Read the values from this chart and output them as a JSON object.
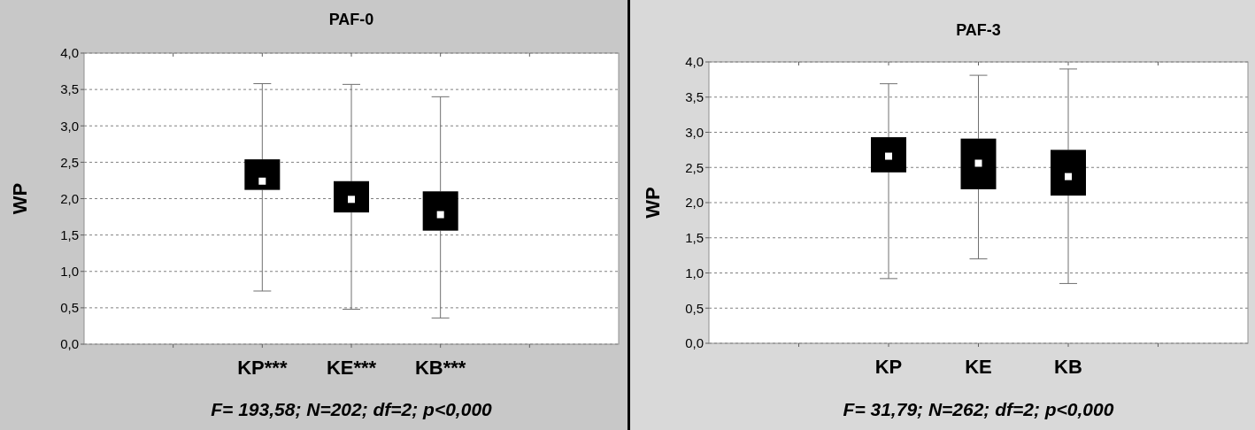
{
  "chart_data": [
    {
      "type": "box",
      "title": "PAF-0",
      "ylabel": "WP",
      "categories": [
        null,
        "KP***",
        "KE***",
        "KB***",
        null
      ],
      "boxes": [
        null,
        {
          "low": 0.73,
          "q1": 2.12,
          "median": 2.24,
          "q3": 2.54,
          "high": 3.58
        },
        {
          "low": 0.48,
          "q1": 1.81,
          "median": 1.99,
          "q3": 2.24,
          "high": 3.57
        },
        {
          "low": 0.36,
          "q1": 1.56,
          "median": 1.78,
          "q3": 2.1,
          "high": 3.4
        },
        null
      ],
      "color": "#000000",
      "ylim": [
        0,
        4
      ],
      "yticks": [
        {
          "value": 0,
          "label": "0,0"
        },
        {
          "value": 0.5,
          "label": "0,5"
        },
        {
          "value": 1,
          "label": "1,0"
        },
        {
          "value": 1.5,
          "label": "1,5"
        },
        {
          "value": 2,
          "label": "2,0"
        },
        {
          "value": 2.5,
          "label": "2,5"
        },
        {
          "value": 3,
          "label": "3,0"
        },
        {
          "value": 3.5,
          "label": "3,5"
        },
        {
          "value": 4,
          "label": "4,0"
        }
      ],
      "grid": "y",
      "annotations": [
        "F= 193,58; N=202; df=2; p<0,000"
      ]
    },
    {
      "type": "box",
      "title": "PAF-3",
      "ylabel": "WP",
      "categories": [
        null,
        "KP",
        "KE",
        "KB",
        null
      ],
      "boxes": [
        null,
        {
          "low": 0.92,
          "q1": 2.43,
          "median": 2.66,
          "q3": 2.93,
          "high": 3.69
        },
        {
          "low": 1.2,
          "q1": 2.19,
          "median": 2.56,
          "q3": 2.91,
          "high": 3.81
        },
        {
          "low": 0.85,
          "q1": 2.1,
          "median": 2.37,
          "q3": 2.75,
          "high": 3.9
        },
        null
      ],
      "color": "#000000",
      "ylim": [
        0,
        4
      ],
      "yticks": [
        {
          "value": 0,
          "label": "0,0"
        },
        {
          "value": 0.5,
          "label": "0,5"
        },
        {
          "value": 1,
          "label": "1,0"
        },
        {
          "value": 1.5,
          "label": "1,5"
        },
        {
          "value": 2,
          "label": "2,0"
        },
        {
          "value": 2.5,
          "label": "2,5"
        },
        {
          "value": 3,
          "label": "3,0"
        },
        {
          "value": 3.5,
          "label": "3,5"
        },
        {
          "value": 4,
          "label": "4,0"
        }
      ],
      "grid": "y",
      "annotations": [
        "F= 31,79; N=262; df=2; p<0,000"
      ]
    }
  ]
}
